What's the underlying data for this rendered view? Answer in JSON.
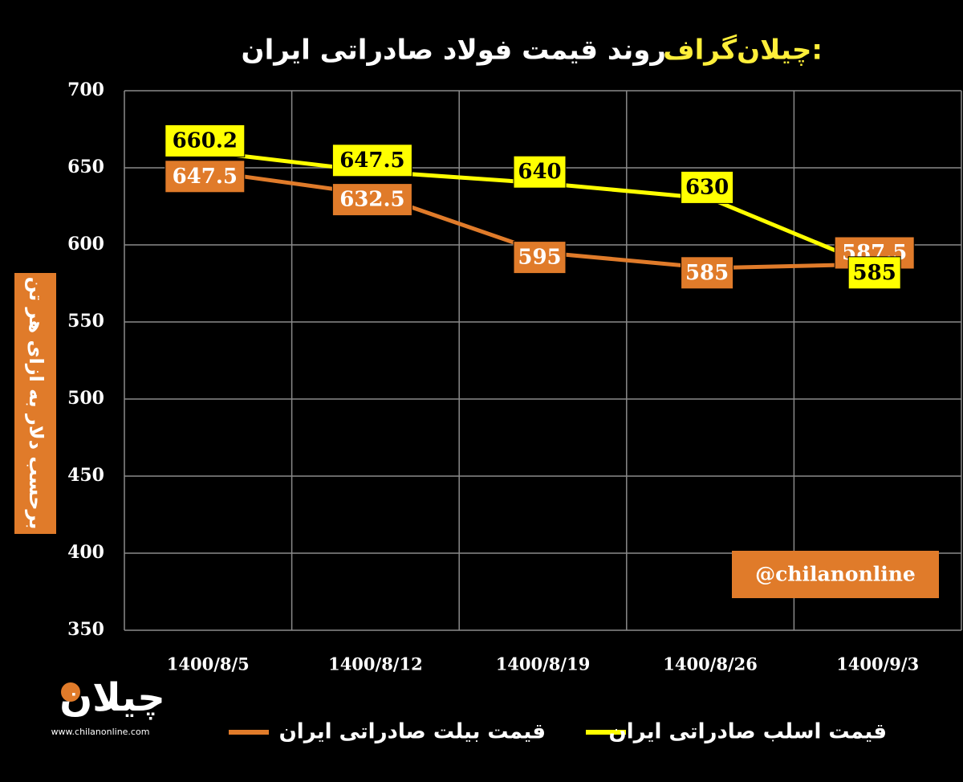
{
  "chart_data": {
    "type": "line",
    "brand_title": "چیلان‌گراف:",
    "title": "روند قیمت فولاد صادراتی ایران",
    "y_label": "برحسب دلار به ازای هر تن",
    "watermark": "@chilanonline",
    "logo": {
      "name": "چیلان",
      "url": "www.chilanonline.com"
    },
    "categories": [
      "1400/8/5",
      "1400/8/12",
      "1400/8/19",
      "1400/8/26",
      "1400/9/3"
    ],
    "series": [
      {
        "name": "قیمت بیلت صادراتی ایران",
        "color": "#e07b2a",
        "values": [
          647.5,
          632.5,
          595,
          585,
          587.5
        ]
      },
      {
        "name": "قیمت اسلب صادراتی ایران",
        "color": "#ffff00",
        "values": [
          660.2,
          647.5,
          640,
          630,
          585
        ]
      }
    ],
    "ylim": [
      350,
      700
    ],
    "yticks": [
      350,
      400,
      450,
      500,
      550,
      600,
      650,
      700
    ],
    "grid": true
  }
}
